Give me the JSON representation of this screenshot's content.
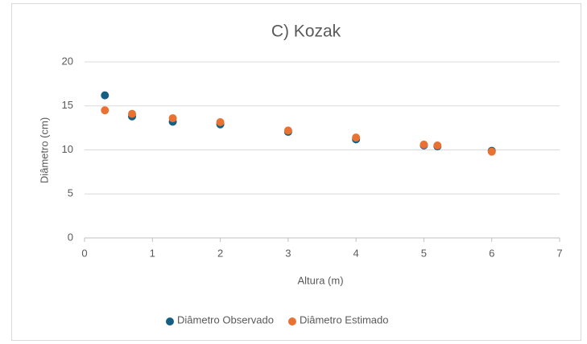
{
  "chart_data": {
    "type": "scatter",
    "title": "C) Kozak",
    "x_label": "Altura (m)",
    "y_label": "Diâmetro (cm)",
    "x": [
      0.3,
      0.7,
      1.3,
      2,
      3,
      4,
      5,
      5.2,
      6
    ],
    "series": [
      {
        "name": "Diâmetro Observado",
        "color": "#156082",
        "values": [
          16.2,
          13.8,
          13.2,
          12.9,
          12.05,
          11.2,
          10.5,
          10.4,
          9.9
        ]
      },
      {
        "name": "Diâmetro Estimado",
        "color": "#e97132",
        "values": [
          14.5,
          14.1,
          13.6,
          13.15,
          12.2,
          11.4,
          10.6,
          10.5,
          9.8
        ]
      }
    ],
    "xlim": [
      0,
      7
    ],
    "xticks": [
      0,
      1,
      2,
      3,
      4,
      5,
      6,
      7
    ],
    "ylim": [
      0,
      20
    ],
    "yticks": [
      0,
      5,
      10,
      15,
      20
    ],
    "grid": true,
    "legend": "bottom"
  }
}
